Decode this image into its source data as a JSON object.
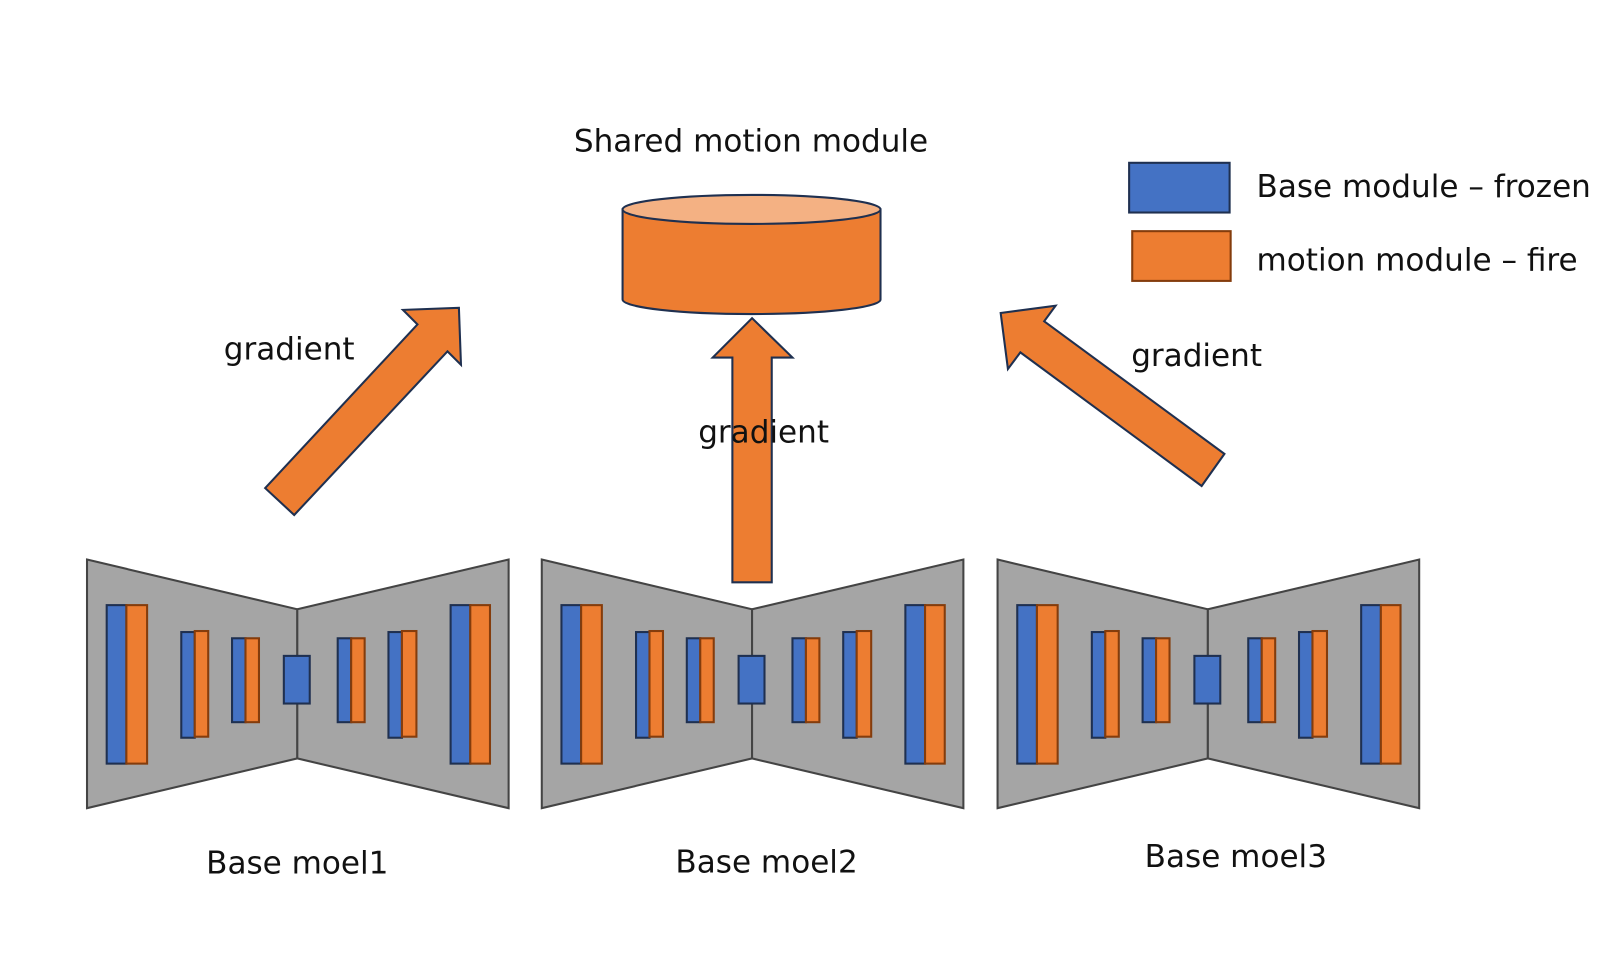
{
  "title": "Shared motion module",
  "legend": [
    {
      "label": "Base module – frozen",
      "color": "#4472C4"
    },
    {
      "label": "motion module – fire",
      "color": "#ED7D31"
    }
  ],
  "arrow_labels": [
    "gradient",
    "gradient",
    "gradient"
  ],
  "models": [
    {
      "label": "Base moel1"
    },
    {
      "label": "Base moel2"
    },
    {
      "label": "Base moel3"
    }
  ],
  "colors": {
    "frozen": "#4472C4",
    "fire": "#ED7D31",
    "base_body": "#A5A5A5",
    "cylinder_top": "#F4B183"
  }
}
